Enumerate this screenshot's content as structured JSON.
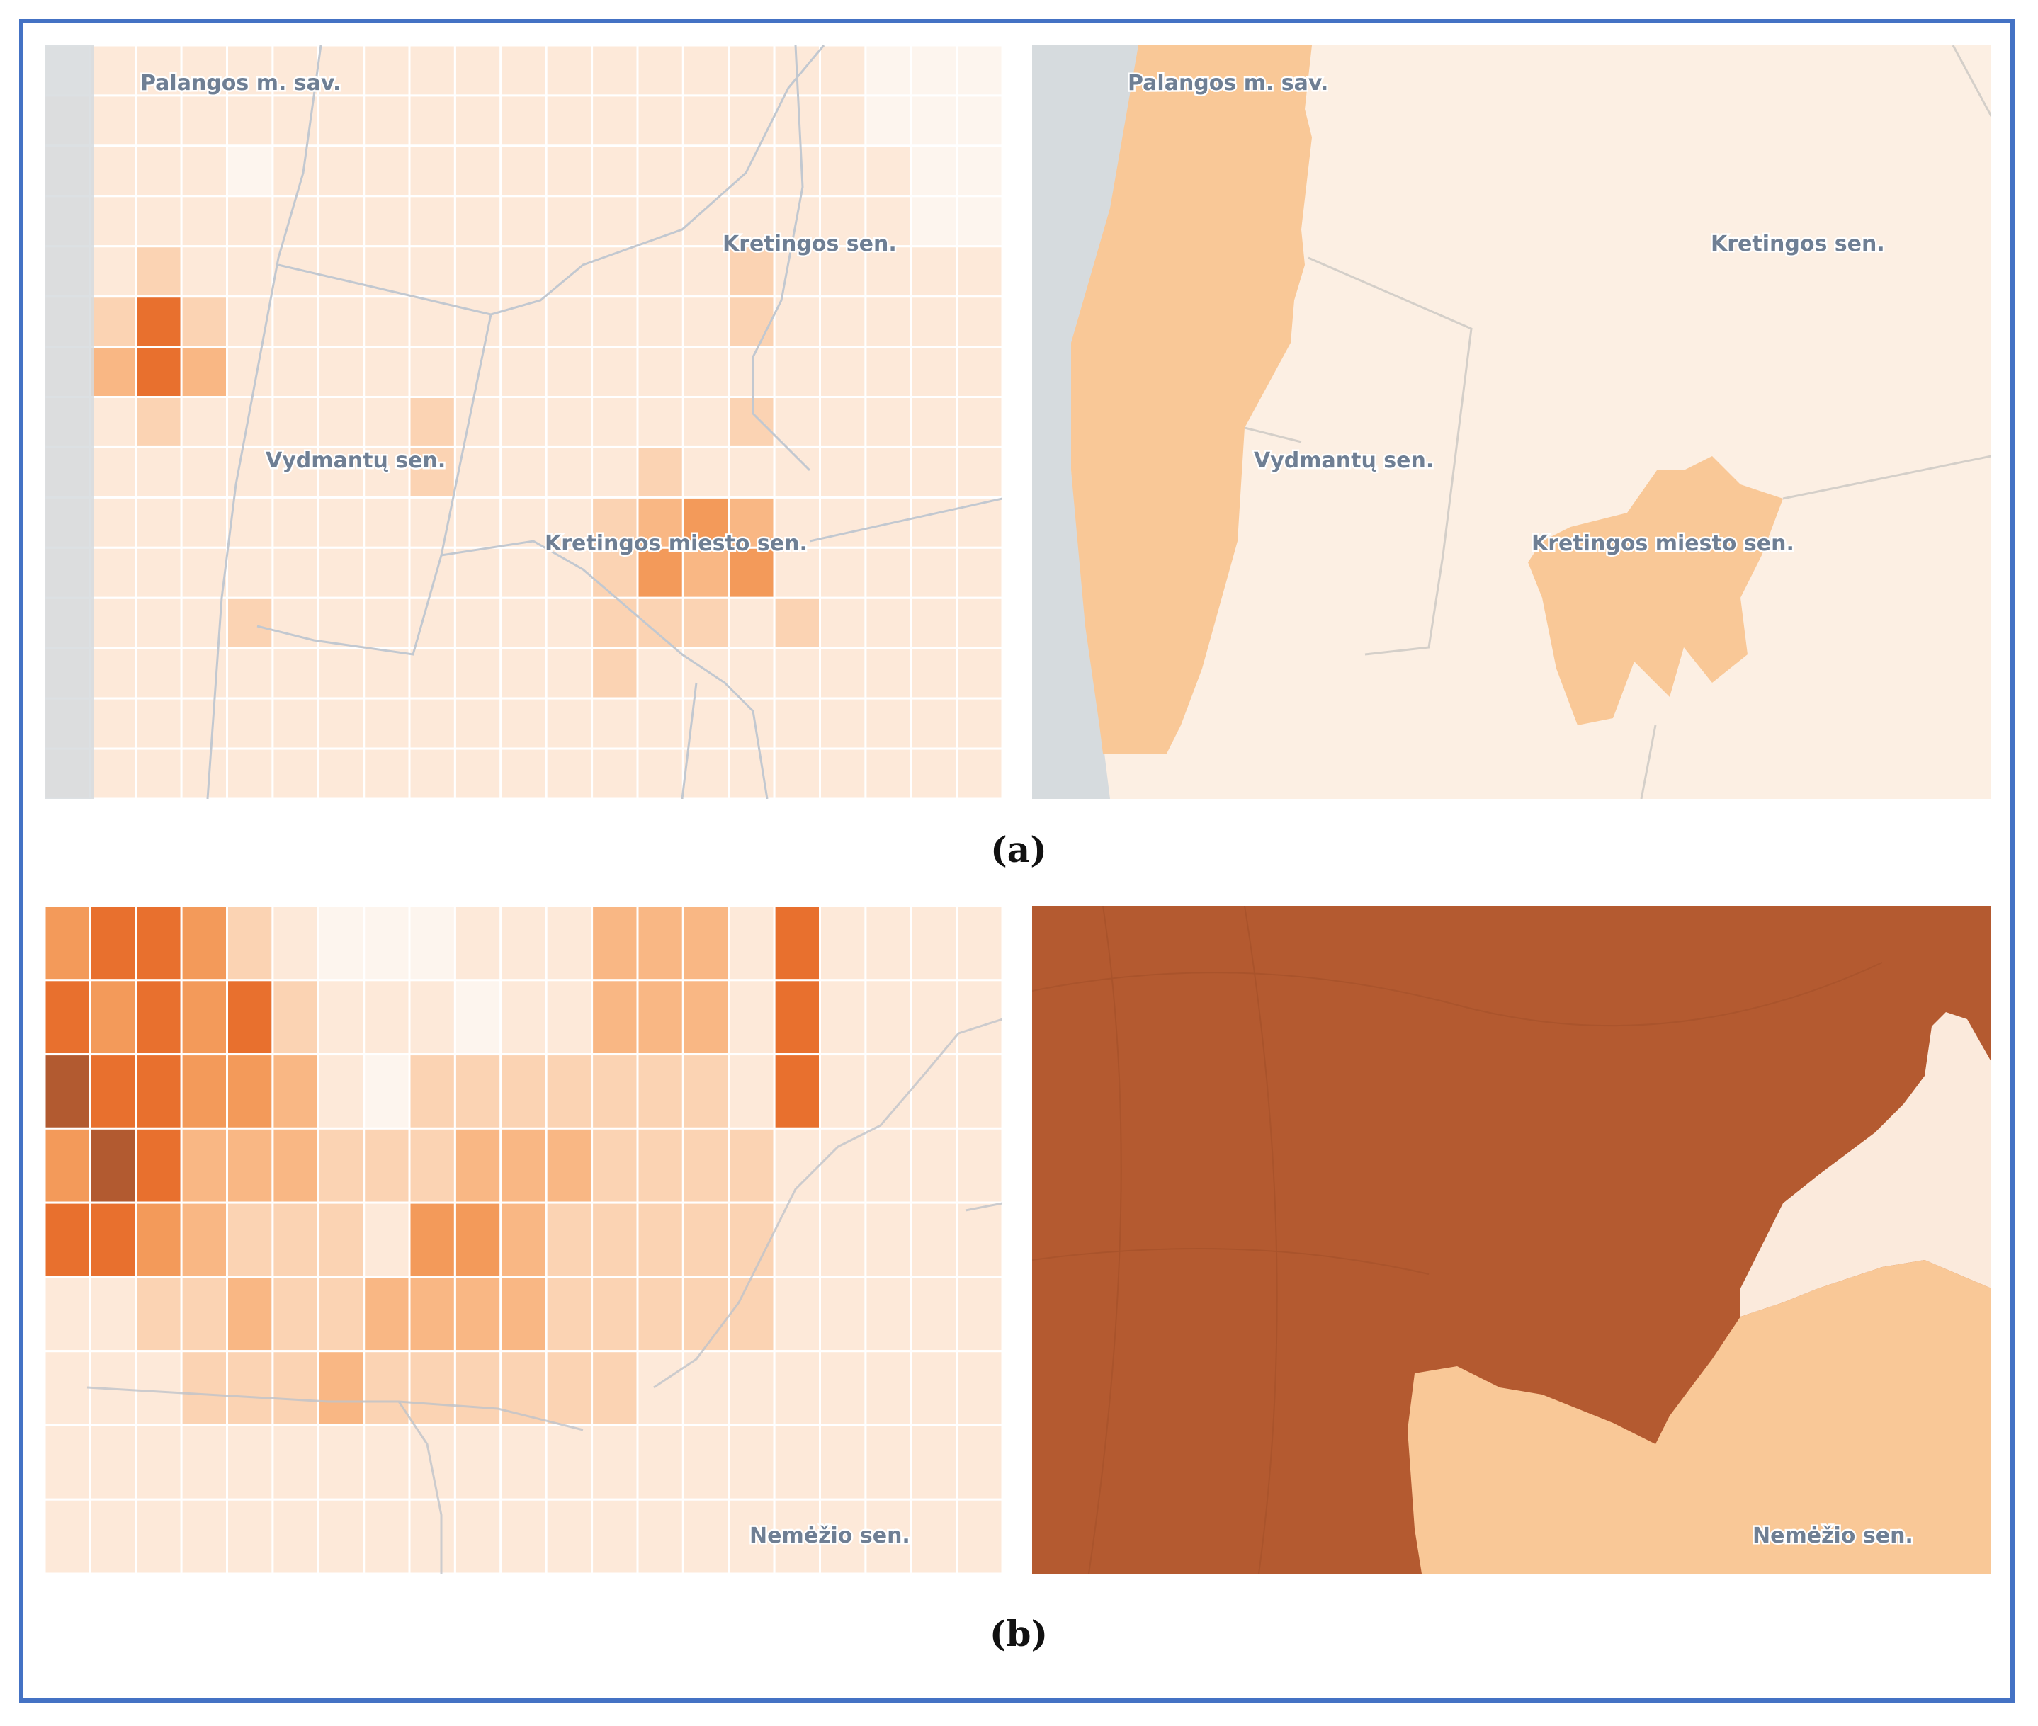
{
  "figure": {
    "panels": {
      "a": {
        "caption": "(a)",
        "labels": [
          "Palangos m. sav.",
          "Kretingos sen.",
          "Vydmantų sen.",
          "Kretingos miesto sen."
        ]
      },
      "b": {
        "caption": "(b)",
        "labels": [
          "Nemėžio sen."
        ]
      }
    }
  },
  "colors": {
    "sea": "#d6dbde",
    "c0": "#fdf5ee",
    "c1": "#fde9d9",
    "c2": "#fbd3b3",
    "c3": "#f9b784",
    "c4": "#f39a5a",
    "c5": "#e8702e",
    "c6": "#b25a30",
    "border": "#c9ced6",
    "frame": "#4472C4"
  },
  "grids": {
    "a_left": [
      "011111111111111111000",
      "111111111111111111000",
      "111101111111111111100",
      "111111111111111111100",
      "112111111111111211111",
      "125211111111111211111",
      "135311111111111111111",
      "112111112111111211111",
      "111111112111121111111",
      "111111111111234311111",
      "111111111111243411111",
      "111121111111222121111",
      "111111111111211111111",
      "111111111111111111111",
      "111111111111111111111"
    ],
    "b_left": [
      "455421000111333151111",
      "545452111011333151111",
      "655443102222222151111",
      "465333222333222211111",
      "554322214432222211111",
      "112232233332222211111",
      "111222322222211111111",
      "111111111111111111111",
      "111111111111111111111"
    ]
  }
}
